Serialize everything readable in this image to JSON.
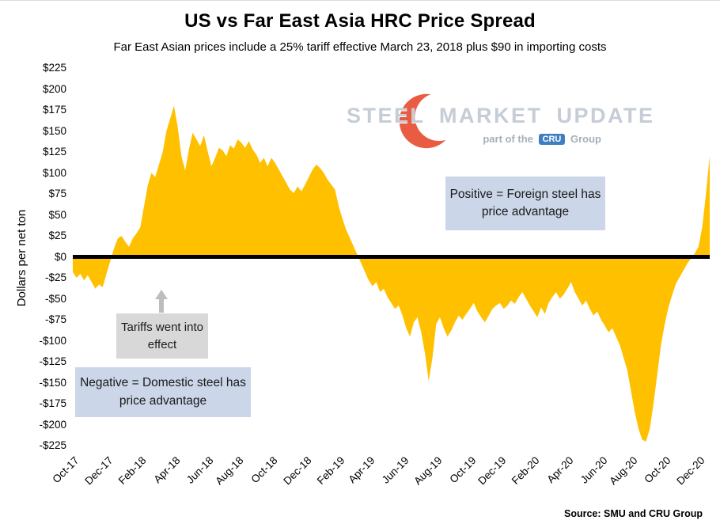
{
  "title": "US vs Far East Asia HRC Price Spread",
  "subtitle": "Far East Asian prices include a 25% tariff effective March 23, 2018 plus $90 in importing costs",
  "source": "Source: SMU and CRU Group",
  "watermark": {
    "title": "STEEL MARKET UPDATE",
    "tagline_prefix": "part of the",
    "tagline_box": "CRU",
    "tagline_suffix": "Group"
  },
  "annotations": {
    "positive_note": "Positive = Foreign steel has price advantage",
    "tariff_note": "Tariffs went into effect",
    "negative_note": "Negative = Domestic steel has price advantage"
  },
  "colors": {
    "area_fill": "#FFC000",
    "zero_line": "#000000",
    "note_blue": "#CBD6E8",
    "note_gray": "#D8D8D8",
    "arrow_gray": "#BDBDBD",
    "watermark_text": "#C6CDD6",
    "logo_red": "#E84B2D",
    "cru_blue": "#3F7EC2"
  },
  "chart_data": {
    "type": "area",
    "title": "US vs Far East Asia HRC Price Spread",
    "ylabel": "Dollars per net ton",
    "ylim": [
      -225,
      225
    ],
    "ytick_step": 25,
    "baseline": 0,
    "grid": false,
    "legend": "none",
    "x_range": [
      "Oct-17",
      "Dec-20"
    ],
    "x_unit": "weekly points Oct-2017 through Dec-2020 (values estimated from chart)",
    "y_tick_labels": [
      "$225",
      "$200",
      "$175",
      "$150",
      "$125",
      "$100",
      "$75",
      "$50",
      "$25",
      "$0",
      "-$25",
      "-$50",
      "-$75",
      "-$100",
      "-$125",
      "-$150",
      "-$175",
      "-$200",
      "-$225"
    ],
    "x_tick_labels": [
      "Oct-17",
      "Dec-17",
      "Feb-18",
      "Apr-18",
      "Jun-18",
      "Aug-18",
      "Oct-18",
      "Dec-18",
      "Feb-19",
      "Apr-19",
      "Jun-19",
      "Aug-19",
      "Oct-19",
      "Dec-19",
      "Feb-20",
      "Apr-20",
      "Jun-20",
      "Aug-20",
      "Oct-20",
      "Dec-20"
    ],
    "x_tick_indices": [
      0,
      9,
      18,
      27,
      36,
      44,
      53,
      62,
      71,
      79,
      88,
      97,
      106,
      114,
      123,
      132,
      141,
      149,
      158,
      167
    ],
    "fill_color": "#FFC000",
    "zero_line_color": "#000000",
    "values": [
      -18,
      -25,
      -20,
      -28,
      -22,
      -30,
      -38,
      -33,
      -36,
      -20,
      -5,
      10,
      22,
      25,
      18,
      12,
      22,
      28,
      35,
      60,
      85,
      100,
      95,
      110,
      125,
      150,
      165,
      180,
      155,
      120,
      103,
      128,
      148,
      140,
      132,
      145,
      126,
      108,
      118,
      130,
      127,
      120,
      133,
      129,
      140,
      136,
      130,
      138,
      128,
      122,
      112,
      118,
      108,
      118,
      112,
      104,
      96,
      88,
      80,
      76,
      84,
      78,
      86,
      95,
      104,
      110,
      106,
      100,
      92,
      86,
      80,
      60,
      45,
      32,
      22,
      12,
      2,
      -8,
      -18,
      -28,
      -35,
      -30,
      -42,
      -38,
      -48,
      -55,
      -62,
      -58,
      -70,
      -85,
      -95,
      -78,
      -72,
      -90,
      -115,
      -148,
      -120,
      -80,
      -72,
      -85,
      -95,
      -88,
      -78,
      -70,
      -75,
      -68,
      -62,
      -55,
      -65,
      -72,
      -78,
      -70,
      -62,
      -58,
      -55,
      -62,
      -58,
      -52,
      -56,
      -48,
      -42,
      -50,
      -58,
      -65,
      -72,
      -60,
      -68,
      -55,
      -48,
      -42,
      -50,
      -45,
      -38,
      -30,
      -42,
      -50,
      -58,
      -52,
      -62,
      -70,
      -65,
      -75,
      -82,
      -90,
      -85,
      -95,
      -105,
      -120,
      -135,
      -160,
      -185,
      -205,
      -218,
      -220,
      -205,
      -175,
      -140,
      -105,
      -80,
      -60,
      -45,
      -32,
      -24,
      -16,
      -8,
      -2,
      4,
      12,
      35,
      75,
      120
    ]
  }
}
